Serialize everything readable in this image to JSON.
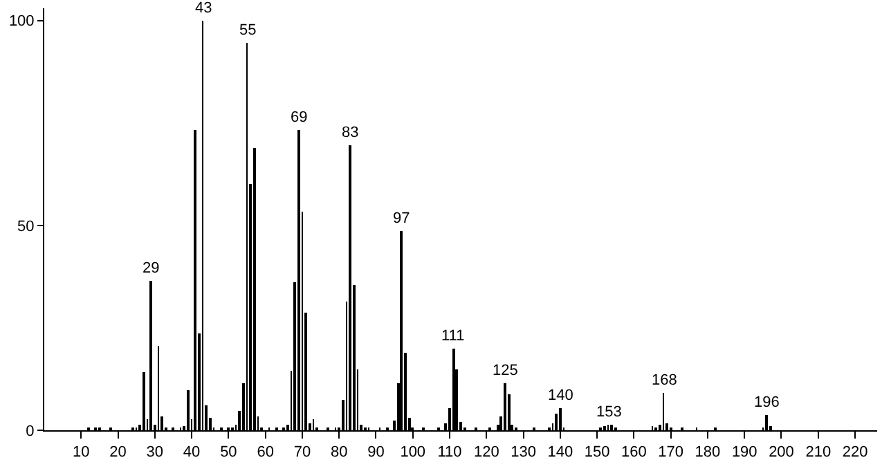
{
  "chart_data": {
    "type": "bar",
    "x": [
      12,
      14,
      15,
      18,
      24,
      25,
      26,
      27,
      28,
      29,
      30,
      31,
      32,
      33,
      35,
      37,
      38,
      39,
      40,
      41,
      42,
      43,
      44,
      45,
      46,
      48,
      50,
      51,
      52,
      53,
      54,
      55,
      56,
      57,
      58,
      59,
      61,
      63,
      65,
      66,
      67,
      68,
      69,
      70,
      71,
      72,
      73,
      74,
      77,
      79,
      80,
      81,
      82,
      83,
      84,
      85,
      86,
      87,
      88,
      91,
      93,
      95,
      96,
      97,
      98,
      99,
      100,
      103,
      107,
      109,
      110,
      111,
      112,
      113,
      114,
      117,
      121,
      123,
      124,
      125,
      126,
      127,
      128,
      133,
      137,
      138,
      139,
      140,
      141,
      151,
      152,
      153,
      154,
      155,
      165,
      166,
      167,
      168,
      169,
      170,
      173,
      177,
      182,
      195,
      196,
      197
    ],
    "values": [
      0.5,
      0.6,
      0.5,
      0.4,
      0.6,
      0.8,
      1.2,
      14.1,
      2.6,
      36.5,
      1.3,
      20.6,
      3.4,
      0.6,
      0.5,
      0.6,
      1.0,
      9.8,
      2.8,
      73.4,
      23.5,
      100,
      6.0,
      3.1,
      0.5,
      0.5,
      0.6,
      0.8,
      1.2,
      4.7,
      11.5,
      94.7,
      60.0,
      69.0,
      3.4,
      0.8,
      0.6,
      0.6,
      0.6,
      1.5,
      14.4,
      36.2,
      73.4,
      53.2,
      28.7,
      1.7,
      2.8,
      0.5,
      0.5,
      0.6,
      0.5,
      7.3,
      31.5,
      69.6,
      35.5,
      14.7,
      1.2,
      0.6,
      0.5,
      0.5,
      0.6,
      2.5,
      11.5,
      48.6,
      18.9,
      3.0,
      0.6,
      0.5,
      0.6,
      1.6,
      5.4,
      19.8,
      15.0,
      2.0,
      0.6,
      0.6,
      0.5,
      1.2,
      3.4,
      11.4,
      8.8,
      1.5,
      0.5,
      0.5,
      0.6,
      1.7,
      4.1,
      5.4,
      0.6,
      0.8,
      1.0,
      1.5,
      1.2,
      0.5,
      1.0,
      0.8,
      1.2,
      9.0,
      1.7,
      0.5,
      0.6,
      0.6,
      0.5,
      0.8,
      3.7,
      1.0
    ],
    "color": "#000000",
    "xlim": [
      0,
      226
    ],
    "ylim": [
      0,
      103
    ],
    "xticks": [
      10,
      20,
      30,
      40,
      50,
      60,
      70,
      80,
      90,
      100,
      110,
      120,
      130,
      140,
      150,
      160,
      170,
      180,
      190,
      200,
      210,
      220
    ],
    "yticks": [
      0,
      50,
      100
    ],
    "annotations": [
      {
        "text": "29",
        "x": 29,
        "y": 36.5
      },
      {
        "text": "43",
        "x": 43,
        "y": 100
      },
      {
        "text": "55",
        "x": 55,
        "y": 94.7
      },
      {
        "text": "69",
        "x": 69,
        "y": 73.4
      },
      {
        "text": "83",
        "x": 83,
        "y": 69.6
      },
      {
        "text": "97",
        "x": 97,
        "y": 48.6
      },
      {
        "text": "111",
        "x": 111,
        "y": 19.8
      },
      {
        "text": "125",
        "x": 125,
        "y": 11.4
      },
      {
        "text": "140",
        "x": 140,
        "y": 5.4
      },
      {
        "text": "153",
        "x": 153,
        "y": 1.5
      },
      {
        "text": "168",
        "x": 168,
        "y": 9.0
      },
      {
        "text": "196",
        "x": 196,
        "y": 3.7
      }
    ]
  }
}
